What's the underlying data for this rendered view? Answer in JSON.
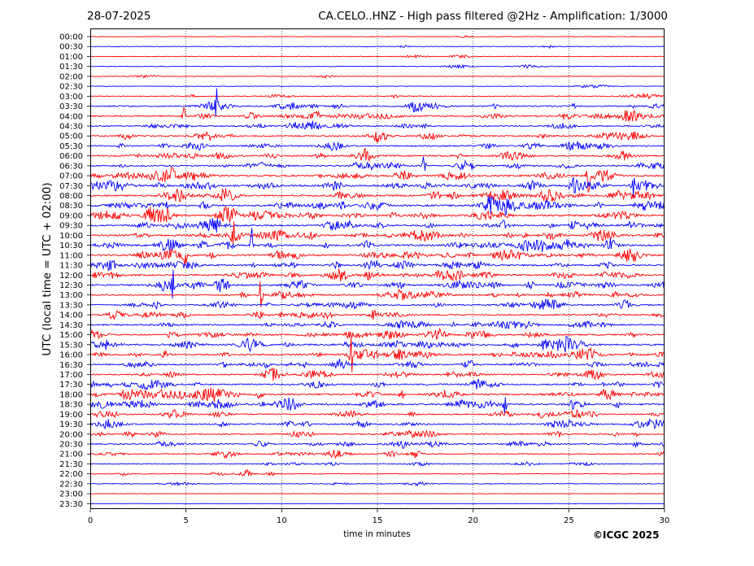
{
  "chart_data": {
    "type": "line",
    "subtype": "helicorder",
    "date": "28-07-2025",
    "title": "CA.CELO..HNZ - High pass filtered @2Hz - Amplification: 1/3000",
    "xlabel": "time in minutes",
    "ylabel": "UTC (local time = UTC + 02:00)",
    "xlim": [
      0,
      30
    ],
    "xticks": [
      0,
      5,
      10,
      15,
      20,
      25,
      30
    ],
    "x_gridlines": [
      5,
      10,
      15,
      20,
      25
    ],
    "rows": [
      "00:00",
      "00:30",
      "01:00",
      "01:30",
      "02:00",
      "02:30",
      "03:00",
      "03:30",
      "04:00",
      "04:30",
      "05:00",
      "05:30",
      "06:00",
      "06:30",
      "07:00",
      "07:30",
      "08:00",
      "08:30",
      "09:00",
      "09:30",
      "10:00",
      "10:30",
      "11:00",
      "11:30",
      "12:00",
      "12:30",
      "13:00",
      "13:30",
      "14:00",
      "14:30",
      "15:00",
      "15:30",
      "16:00",
      "16:30",
      "17:00",
      "17:30",
      "18:00",
      "18:30",
      "19:00",
      "19:30",
      "20:00",
      "20:30",
      "21:00",
      "21:30",
      "22:00",
      "22:30",
      "23:00",
      "23:30"
    ],
    "trace_colors": [
      "#ff0000",
      "#0000ff"
    ],
    "row_activity": [
      0.04,
      0.08,
      0.1,
      0.1,
      0.1,
      0.1,
      0.18,
      0.55,
      0.55,
      0.45,
      0.55,
      0.55,
      0.6,
      0.6,
      0.75,
      0.8,
      0.75,
      0.75,
      0.75,
      0.7,
      0.75,
      0.75,
      0.75,
      0.7,
      0.7,
      0.65,
      0.55,
      0.55,
      0.55,
      0.6,
      0.65,
      0.7,
      0.7,
      0.6,
      0.55,
      0.6,
      0.75,
      0.7,
      0.5,
      0.5,
      0.45,
      0.45,
      0.4,
      0.25,
      0.2,
      0.15,
      0.03,
      0.0
    ]
  },
  "copyright": "©ICGC 2025"
}
